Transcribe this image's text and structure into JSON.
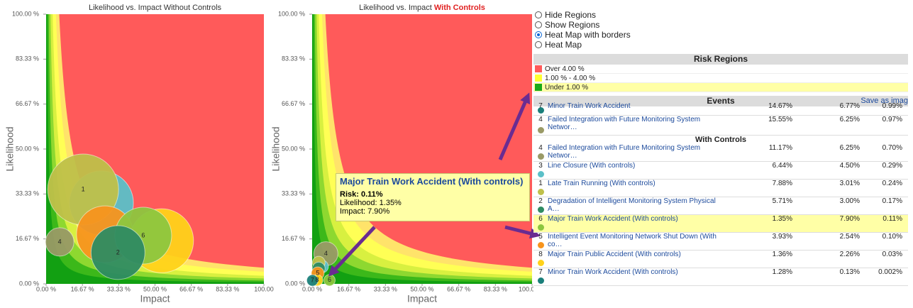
{
  "chart_data": [
    {
      "type": "bubble",
      "title": "Likelihood vs. Impact Without Controls",
      "xlabel": "Impact",
      "ylabel": "Likelihood",
      "xlim": [
        0,
        100
      ],
      "ylim": [
        0,
        100
      ],
      "xticks": [
        {
          "value": 0,
          "label": "0.00 %"
        },
        {
          "value": 16.67,
          "label": "16.67 %"
        },
        {
          "value": 33.33,
          "label": "33.33 %"
        },
        {
          "value": 50,
          "label": "50.00 %"
        },
        {
          "value": 66.67,
          "label": "66.67 %"
        },
        {
          "value": 83.33,
          "label": "83.33 %"
        },
        {
          "value": 100,
          "label": "100.00"
        }
      ],
      "yticks": [
        {
          "value": 0,
          "label": "0.00 %"
        },
        {
          "value": 16.67,
          "label": "16.67 %"
        },
        {
          "value": 33.33,
          "label": "33.33 %"
        },
        {
          "value": 50,
          "label": "50.00 %"
        },
        {
          "value": 66.67,
          "label": "66.67 %"
        },
        {
          "value": 83.33,
          "label": "83.33 %"
        },
        {
          "value": 100,
          "label": "100.00 %"
        }
      ],
      "x": [
        25.4,
        17,
        27,
        53,
        44.6,
        33,
        6.25
      ],
      "values": [
        30,
        35,
        18.4,
        16,
        17.9,
        11.6,
        15.55
      ],
      "sizes": [
        127,
        156,
        100,
        127,
        100,
        90,
        25
      ],
      "labels": [
        null,
        "1",
        null,
        null,
        "6",
        "2",
        "4"
      ],
      "colors": [
        "#5bc0c8",
        "#bfc04a",
        "#f7941d",
        "#ffd21a",
        "#8dc63f",
        "#2e8b62",
        "#9a9a66"
      ]
    },
    {
      "type": "bubble",
      "title": "Likelihood vs. Impact",
      "title_highlight": "With Controls",
      "xlabel": "Impact",
      "ylabel": "Likelihood",
      "xlim": [
        0,
        100
      ],
      "ylim": [
        0,
        100
      ],
      "xticks": [
        {
          "value": 0,
          "label": "0.00 %"
        },
        {
          "value": 16.67,
          "label": "16.67 %"
        },
        {
          "value": 33.33,
          "label": "33.33 %"
        },
        {
          "value": 50,
          "label": "50.00 %"
        },
        {
          "value": 66.67,
          "label": "66.67 %"
        },
        {
          "value": 83.33,
          "label": "83.33 %"
        },
        {
          "value": 100,
          "label": "100.00 %"
        }
      ],
      "yticks": [
        {
          "value": 0,
          "label": "0.00 %"
        },
        {
          "value": 16.67,
          "label": "16.67 %"
        },
        {
          "value": 33.33,
          "label": "33.33 %"
        },
        {
          "value": 50,
          "label": "50.00 %"
        },
        {
          "value": 66.67,
          "label": "66.67 %"
        },
        {
          "value": 83.33,
          "label": "83.33 %"
        },
        {
          "value": 100,
          "label": "100.00 %"
        }
      ],
      "x": [
        6.25,
        4.5,
        3.01,
        3.0,
        2.54,
        2.26,
        7.9,
        0.13
      ],
      "values": [
        11.17,
        6.44,
        7.88,
        5.71,
        3.93,
        1.36,
        1.35,
        1.28
      ],
      "sizes": [
        18,
        5,
        5,
        5,
        5,
        4,
        4,
        4
      ],
      "labels": [
        "4",
        null,
        null,
        null,
        "5",
        "8",
        "6",
        "7"
      ],
      "colors": [
        "#9a9a66",
        "#5bc0c8",
        "#bfc04a",
        "#2e8b62",
        "#f7941d",
        "#ffd21a",
        "#8dc63f",
        "#1a7f7a"
      ]
    }
  ],
  "tooltip": {
    "title": "Major Train Work Accident (With controls)",
    "risk": "Risk: 0.11%",
    "likelihood": "Likelihood: 1.35%",
    "impact": "Impact: 7.90%"
  },
  "controls": {
    "options": [
      "Hide Regions",
      "Show Regions",
      "Heat Map with borders",
      "Heat Map"
    ],
    "selected": 2
  },
  "risk_regions": {
    "title": "Risk Regions",
    "items": [
      {
        "label": "Over 4.00 %",
        "color": "#ff5a5a"
      },
      {
        "label": "1.00 % - 4.00 %",
        "color": "#ffff33"
      },
      {
        "label": "Under 1.00 %",
        "color": "#1aaa1a"
      }
    ]
  },
  "events": {
    "title": "Events",
    "save_link": "Save as imag",
    "section_label": "With Controls",
    "rows_without": [
      {
        "id": "7",
        "name": "Minor Train Work Accident",
        "likelihood": "14.67%",
        "impact": "6.77%",
        "risk": "0.99%",
        "color": "#1a7f7a"
      },
      {
        "id": "4",
        "name": "Failed Integration with Future Monitoring System Networ…",
        "likelihood": "15.55%",
        "impact": "6.25%",
        "risk": "0.97%",
        "color": "#9a9a66"
      }
    ],
    "rows_with": [
      {
        "id": "4",
        "name": "Failed Integration with Future Monitoring System Networ…",
        "likelihood": "11.17%",
        "impact": "6.25%",
        "risk": "0.70%",
        "color": "#9a9a66"
      },
      {
        "id": "3",
        "name": "Line Closure (With controls)",
        "likelihood": "6.44%",
        "impact": "4.50%",
        "risk": "0.29%",
        "color": "#5bc0c8"
      },
      {
        "id": "1",
        "name": "Late Train Running (With controls)",
        "likelihood": "7.88%",
        "impact": "3.01%",
        "risk": "0.24%",
        "color": "#bfc04a"
      },
      {
        "id": "2",
        "name": "Degradation of Intelligent Monitoring System Physical A…",
        "likelihood": "5.71%",
        "impact": "3.00%",
        "risk": "0.17%",
        "color": "#2e8b62"
      },
      {
        "id": "6",
        "name": "Major Train Work Accident (With controls)",
        "likelihood": "1.35%",
        "impact": "7.90%",
        "risk": "0.11%",
        "color": "#8dc63f",
        "highlighted": true
      },
      {
        "id": "5",
        "name": "Intelligent Event Monitoring Network Shut Down (With co…",
        "likelihood": "3.93%",
        "impact": "2.54%",
        "risk": "0.10%",
        "color": "#f7941d"
      },
      {
        "id": "8",
        "name": "Major Train Public Accident (With controls)",
        "likelihood": "1.36%",
        "impact": "2.26%",
        "risk": "0.03%",
        "color": "#ffd21a"
      },
      {
        "id": "7",
        "name": "Minor Train Work Accident (With controls)",
        "likelihood": "1.28%",
        "impact": "0.13%",
        "risk": "0.002%",
        "color": "#1a7f7a"
      }
    ]
  }
}
